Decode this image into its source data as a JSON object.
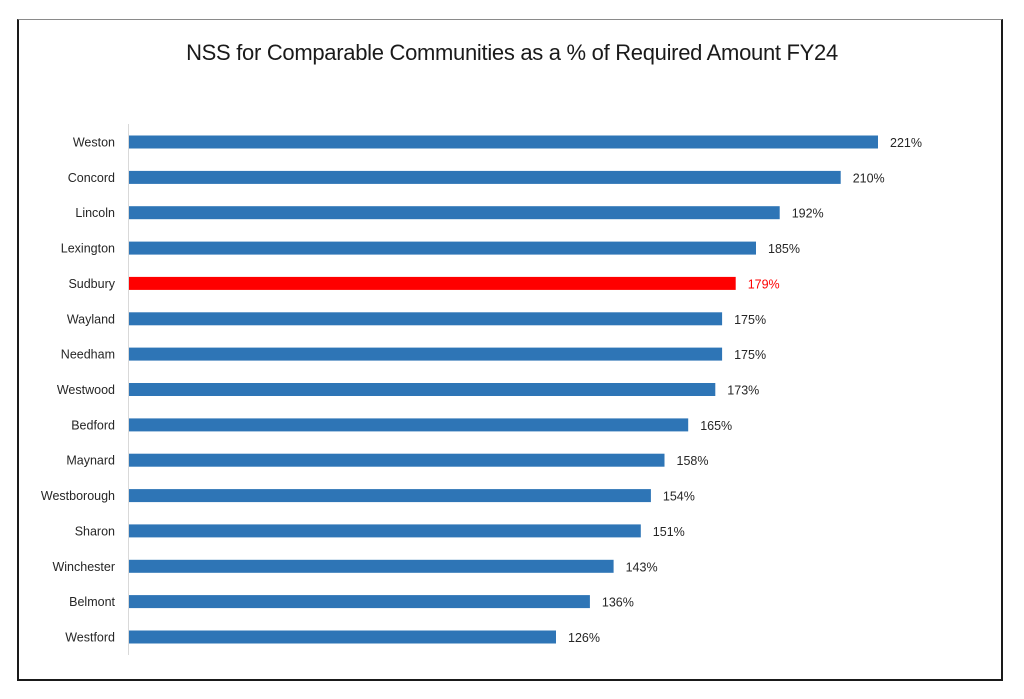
{
  "chart_data": {
    "type": "bar",
    "orientation": "horizontal",
    "title": "NSS for Comparable Communities as a % of Required Amount FY24",
    "xlabel": "",
    "ylabel": "",
    "xlim": [
      0,
      221
    ],
    "grid": false,
    "legend": "none",
    "value_suffix": "%",
    "categories": [
      "Weston",
      "Concord",
      "Lincoln",
      "Lexington",
      "Sudbury",
      "Wayland",
      "Needham",
      "Westwood",
      "Bedford",
      "Maynard",
      "Westborough",
      "Sharon",
      "Winchester",
      "Belmont",
      "Westford"
    ],
    "values": [
      221,
      210,
      192,
      185,
      179,
      175,
      175,
      173,
      165,
      158,
      154,
      151,
      143,
      136,
      126
    ],
    "data_labels": [
      "221%",
      "210%",
      "192%",
      "185%",
      "179%",
      "175%",
      "175%",
      "173%",
      "165%",
      "158%",
      "154%",
      "151%",
      "143%",
      "136%",
      "126%"
    ],
    "highlight": "Sudbury",
    "colors": {
      "default": "#2E75B6",
      "highlight": "#FF0000",
      "label_default": "#262626",
      "label_highlight": "#FF0000"
    }
  }
}
